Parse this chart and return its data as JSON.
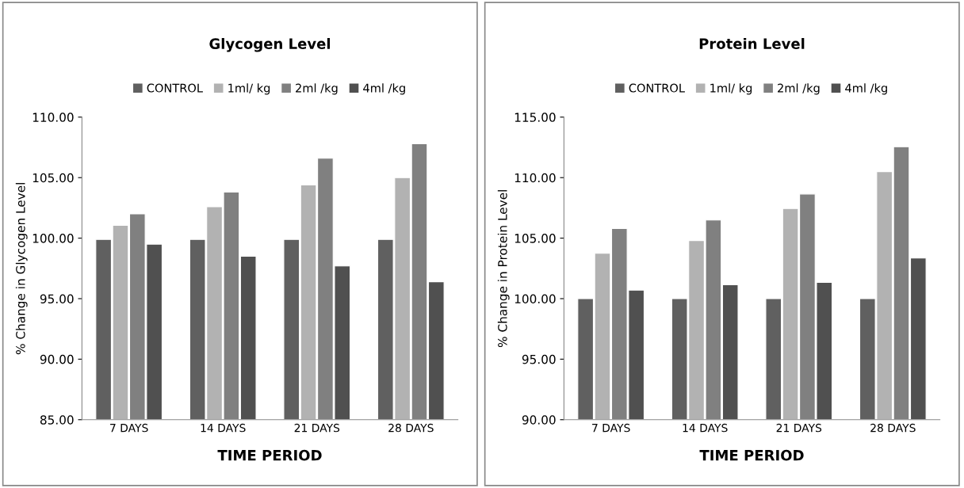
{
  "chart_data": [
    {
      "type": "bar",
      "title": "Glycogen Level",
      "xlabel": "TIME PERIOD",
      "ylabel": "% Change in Glycogen Level",
      "categories": [
        "7 DAYS",
        "14 DAYS",
        "21 DAYS",
        "28 DAYS"
      ],
      "series": [
        {
          "name": "CONTROL",
          "color": "#606060",
          "values": [
            99.9,
            99.9,
            99.9,
            99.9
          ]
        },
        {
          "name": "1ml/ kg",
          "color": "#b2b2b2",
          "values": [
            101.05,
            102.6,
            104.4,
            105.0
          ]
        },
        {
          "name": "2ml /kg",
          "color": "#808080",
          "values": [
            102.0,
            103.8,
            106.6,
            107.8
          ]
        },
        {
          "name": "4ml /kg",
          "color": "#505050",
          "values": [
            99.5,
            98.5,
            97.7,
            96.4
          ]
        }
      ],
      "ylim": [
        85,
        110
      ],
      "yticks": [
        {
          "value": 85,
          "label": "85.00"
        },
        {
          "value": 90,
          "label": "90.00"
        },
        {
          "value": 95,
          "label": "95.00"
        },
        {
          "value": 100,
          "label": "100.00"
        },
        {
          "value": 105,
          "label": "105.00"
        },
        {
          "value": 110,
          "label": "110.00"
        }
      ],
      "legend": "top",
      "grid": false
    },
    {
      "type": "bar",
      "title": "Protein Level",
      "xlabel": "TIME PERIOD",
      "ylabel": "% Change in Protein Level",
      "categories": [
        "7 DAYS",
        "14 DAYS",
        "21 DAYS",
        "28 DAYS"
      ],
      "series": [
        {
          "name": "CONTROL",
          "color": "#606060",
          "values": [
            100.0,
            100.0,
            100.0,
            100.0
          ]
        },
        {
          "name": "1ml/ kg",
          "color": "#b2b2b2",
          "values": [
            103.75,
            104.8,
            107.45,
            110.5
          ]
        },
        {
          "name": "2ml /kg",
          "color": "#808080",
          "values": [
            105.8,
            106.5,
            108.65,
            112.55
          ]
        },
        {
          "name": "4ml /kg",
          "color": "#505050",
          "values": [
            100.7,
            101.15,
            101.35,
            103.35
          ]
        }
      ],
      "ylim": [
        90,
        115
      ],
      "yticks": [
        {
          "value": 90,
          "label": "90.00"
        },
        {
          "value": 95,
          "label": "95.00"
        },
        {
          "value": 100,
          "label": "100.00"
        },
        {
          "value": 105,
          "label": "105.00"
        },
        {
          "value": 110,
          "label": "110.00"
        },
        {
          "value": 115,
          "label": "115.00"
        }
      ],
      "legend": "top",
      "grid": false
    }
  ]
}
